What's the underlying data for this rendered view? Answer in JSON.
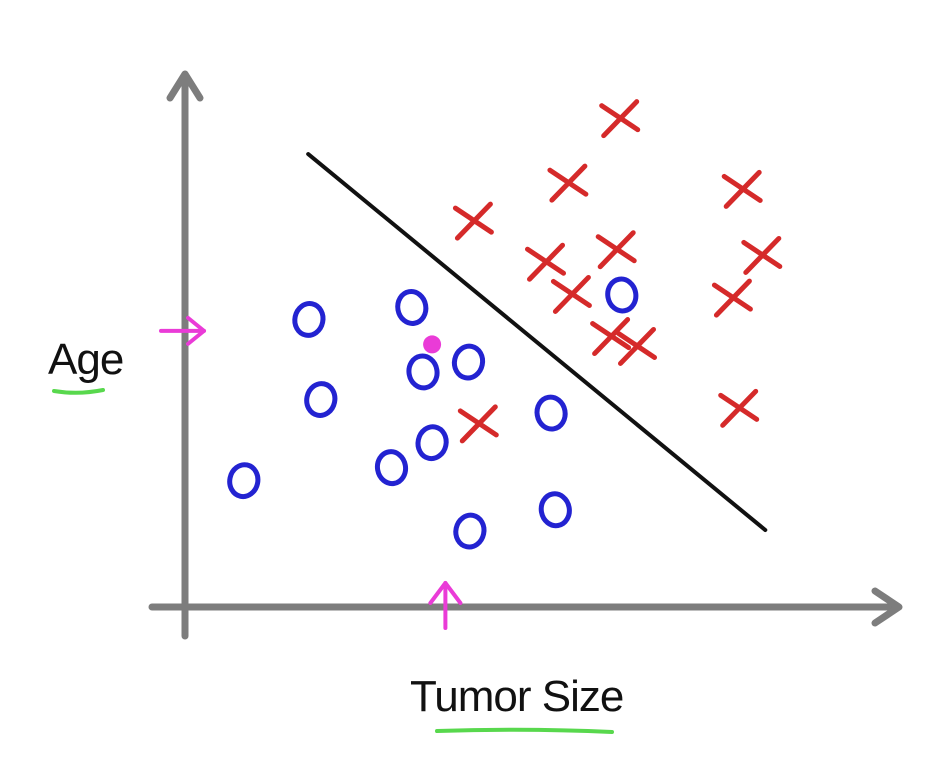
{
  "colors": {
    "axis": "#7d7d7d",
    "boundary": "#111111",
    "positive": "#d52a2a",
    "negative": "#2323d1",
    "marker": "#ea3bd7",
    "underline": "#58d84d"
  },
  "chart_data": {
    "type": "scatter",
    "title": "",
    "xlabel": "Tumor Size",
    "ylabel": "Age",
    "xlim": [
      0,
      10
    ],
    "ylim": [
      0,
      10
    ],
    "grid": false,
    "legend": "none",
    "boundary_line": {
      "x": [
        1.76,
        8.29
      ],
      "y": [
        8.71,
        1.48
      ]
    },
    "marker_arrows": [
      {
        "axis": "x",
        "value": 3.72
      },
      {
        "axis": "y",
        "value": 5.31
      }
    ],
    "highlight_point": {
      "x": 3.53,
      "y": 5.05
    },
    "series": [
      {
        "marker": "x",
        "points": [
          {
            "x": 4.12,
            "y": 7.44
          },
          {
            "x": 5.47,
            "y": 8.17
          },
          {
            "x": 6.21,
            "y": 9.41
          },
          {
            "x": 7.96,
            "y": 8.05
          },
          {
            "x": 5.15,
            "y": 6.65
          },
          {
            "x": 6.16,
            "y": 6.89
          },
          {
            "x": 8.24,
            "y": 6.78
          },
          {
            "x": 5.52,
            "y": 6.03
          },
          {
            "x": 7.82,
            "y": 5.96
          },
          {
            "x": 6.08,
            "y": 5.22
          },
          {
            "x": 6.45,
            "y": 5.03
          },
          {
            "x": 7.91,
            "y": 3.84
          },
          {
            "x": 4.19,
            "y": 3.54
          }
        ]
      },
      {
        "marker": "o",
        "points": [
          {
            "x": 3.24,
            "y": 5.76
          },
          {
            "x": 1.77,
            "y": 5.53
          },
          {
            "x": 6.24,
            "y": 6.0
          },
          {
            "x": 4.05,
            "y": 4.71
          },
          {
            "x": 3.4,
            "y": 4.52
          },
          {
            "x": 1.94,
            "y": 3.99
          },
          {
            "x": 5.23,
            "y": 3.73
          },
          {
            "x": 3.53,
            "y": 3.16
          },
          {
            "x": 2.95,
            "y": 2.68
          },
          {
            "x": 0.84,
            "y": 2.43
          },
          {
            "x": 5.29,
            "y": 1.87
          },
          {
            "x": 4.07,
            "y": 1.46
          }
        ]
      }
    ]
  }
}
